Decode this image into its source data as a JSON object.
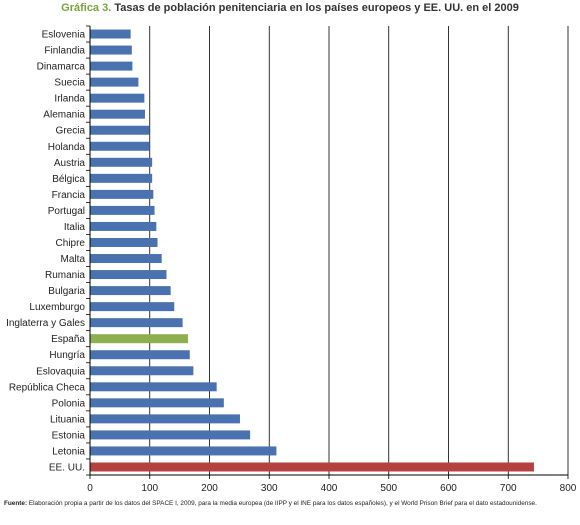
{
  "header": {
    "lead": "Gráfica 3.",
    "title": "Tasas de población penitenciaria en los países europeos y EE. UU. en el 2009"
  },
  "source": {
    "label": "Fuente:",
    "text": "Elaboración propia a partir de los datos del SPACE I, 2009, para la media europea (de IIPP y el INE para los datos españoles), y el World Prison Brief para el dato estadounidense."
  },
  "colors": {
    "default_bar": "#4a72b0",
    "spain_bar": "#8faf4e",
    "usa_bar": "#b5413e",
    "grid": "#000000"
  },
  "chart_data": {
    "type": "bar",
    "orientation": "horizontal",
    "title": "Tasas de población penitenciaria en los países europeos y EE. UU. en el 2009",
    "xlabel": "",
    "ylabel": "",
    "xlim": [
      0,
      800
    ],
    "xticks": [
      0,
      100,
      200,
      300,
      400,
      500,
      600,
      700,
      800
    ],
    "grid": "vertical",
    "legend": "none",
    "categories": [
      "Eslovenia",
      "Finlandia",
      "Dinamarca",
      "Suecia",
      "Irlanda",
      "Alemania",
      "Grecia",
      "Holanda",
      "Austria",
      "Bélgica",
      "Francia",
      "Portugal",
      "Italia",
      "Chipre",
      "Malta",
      "Rumania",
      "Bulgaria",
      "Luxemburgo",
      "Inglaterra y Gales",
      "España",
      "Hungría",
      "Eslovaquia",
      "República Checa",
      "Polonia",
      "Lituania",
      "Estonia",
      "Letonia",
      "EE. UU."
    ],
    "values": [
      68,
      70,
      71,
      81,
      91,
      92,
      99,
      100,
      104,
      104,
      106,
      108,
      111,
      113,
      120,
      128,
      135,
      141,
      155,
      164,
      167,
      173,
      212,
      224,
      251,
      268,
      312,
      743
    ],
    "highlight": {
      "España": "#8faf4e",
      "EE. UU.": "#b5413e"
    }
  }
}
